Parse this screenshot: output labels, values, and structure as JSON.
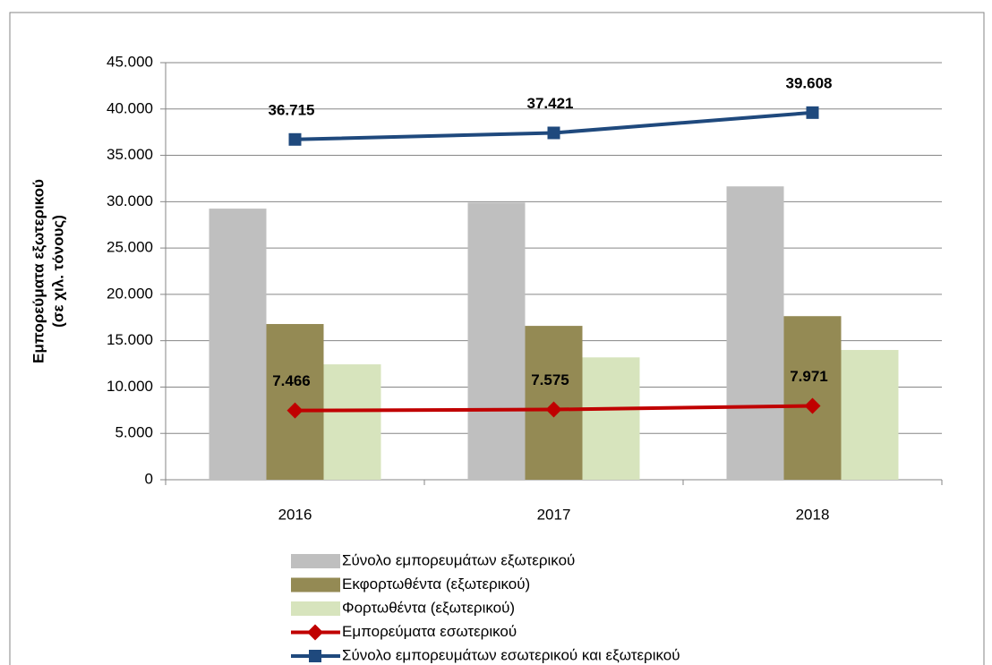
{
  "chart_data": {
    "type": "bar",
    "ylabel": [
      "Εμπορεύματα εξωτερικού",
      "(σε χιλ. τόνους)"
    ],
    "categories": [
      "2016",
      "2017",
      "2018"
    ],
    "series": [
      {
        "name": "Σύνολο εμπορευμάτων εξωτερικού",
        "type": "bar",
        "color": "#bfbfbf",
        "values": [
          29250,
          29900,
          31650
        ]
      },
      {
        "name": "Εκφορτωθέντα (εξωτερικού)",
        "type": "bar",
        "color": "#948a54",
        "values": [
          16800,
          16600,
          17650
        ]
      },
      {
        "name": "Φορτωθέντα (εξωτερικού)",
        "type": "bar",
        "color": "#d7e4bd",
        "values": [
          12450,
          13200,
          14000
        ]
      },
      {
        "name": "Εμπορεύματα εσωτερικού",
        "type": "line",
        "color": "#c00000",
        "values": [
          7466,
          7575,
          7971
        ],
        "value_labels": [
          "7.466",
          "7.575",
          "7.971"
        ]
      },
      {
        "name": "Σύνολο εμπορευμάτων εσωτερικού και εξωτερικού",
        "type": "line",
        "color": "#1f497d",
        "values": [
          36715,
          37421,
          39608
        ],
        "value_labels": [
          "36.715",
          "37.421",
          "39.608"
        ]
      }
    ],
    "ylim": [
      0,
      45000
    ],
    "yticks": [
      0,
      {
        "value": 5000,
        "label": "5.000"
      },
      {
        "value": 10000,
        "label": "10.000"
      },
      {
        "value": 15000,
        "label": "15.000"
      },
      {
        "value": 20000,
        "label": "20.000"
      },
      {
        "value": 25000,
        "label": "25.000"
      },
      {
        "value": 30000,
        "label": "30.000"
      },
      {
        "value": 35000,
        "label": "35.000"
      },
      {
        "value": 40000,
        "label": "40.000"
      },
      {
        "value": 45000,
        "label": "45.000"
      }
    ],
    "grid": true
  }
}
